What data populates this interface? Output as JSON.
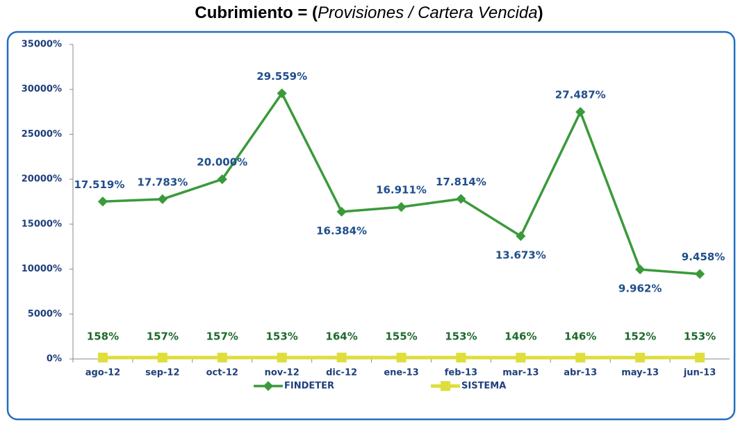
{
  "chart_data": {
    "type": "line",
    "title": [
      "Cubrimiento = (",
      "Provisiones / Cartera Vencida",
      ")"
    ],
    "categories": [
      "ago-12",
      "sep-12",
      "oct-12",
      "nov-12",
      "dic-12",
      "ene-13",
      "feb-13",
      "mar-13",
      "abr-13",
      "may-13",
      "jun-13"
    ],
    "series": [
      {
        "name": "FINDETER",
        "color": "#3a9a3a",
        "label_color": "#1f4e8c",
        "values": [
          17519,
          17783,
          20000,
          29559,
          16384,
          16911,
          17814,
          13673,
          27487,
          9962,
          9458
        ],
        "value_labels": [
          "17.519%",
          "17.783%",
          "20.000%",
          "29.559%",
          "16.384%",
          "16.911%",
          "17.814%",
          "13.673%",
          "27.487%",
          "9.962%",
          "9.458%"
        ]
      },
      {
        "name": "SISTEMA",
        "color": "#dede3c",
        "label_color": "#1e6a2a",
        "values": [
          158,
          157,
          157,
          153,
          164,
          155,
          153,
          146,
          146,
          152,
          153
        ],
        "value_labels": [
          "158%",
          "157%",
          "157%",
          "153%",
          "164%",
          "155%",
          "153%",
          "146%",
          "146%",
          "152%",
          "153%"
        ]
      }
    ],
    "ylim": [
      0,
      35000
    ],
    "yticks": [
      {
        "value": 0,
        "label": "0%"
      },
      {
        "value": 5000,
        "label": "5000%"
      },
      {
        "value": 10000,
        "label": "10000%"
      },
      {
        "value": 15000,
        "label": "15000%"
      },
      {
        "value": 20000,
        "label": "20000%"
      },
      {
        "value": 25000,
        "label": "25000%"
      },
      {
        "value": 30000,
        "label": "30000%"
      },
      {
        "value": 35000,
        "label": "35000%"
      }
    ]
  }
}
